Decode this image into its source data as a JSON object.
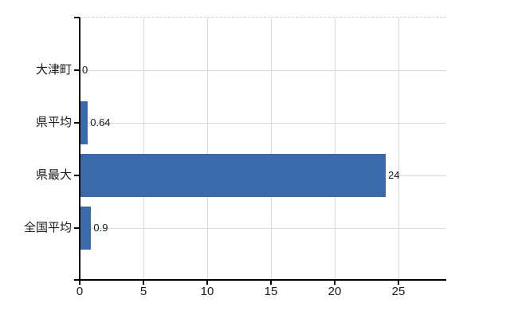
{
  "chart": {
    "background": "#ffffff",
    "bar_color": "#3b6aab",
    "axis_color": "#000000",
    "vertical_gridline_color": "#d9d9d9",
    "horizontal_gridline_color": "#d9ded9",
    "top_border_color": "#cfcfcf",
    "text_color": "#1a1a1a"
  },
  "chart_data": {
    "type": "bar",
    "orientation": "horizontal",
    "title": "",
    "xlabel": "",
    "ylabel": "",
    "categories": [
      "大津町",
      "県平均",
      "県最大",
      "全国平均"
    ],
    "values": [
      0,
      0.64,
      24,
      0.9
    ],
    "value_labels": [
      "0",
      "0.64",
      "24",
      "0.9"
    ],
    "x_ticks": [
      0,
      5,
      10,
      15,
      20,
      25
    ],
    "x_tick_labels": [
      "0",
      "5",
      "10",
      "15",
      "20",
      "25"
    ],
    "xlim": [
      0,
      28.75
    ],
    "grid": true,
    "legend_position": "none"
  }
}
